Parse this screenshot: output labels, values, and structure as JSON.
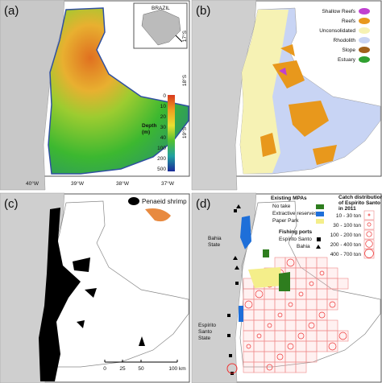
{
  "panels": [
    {
      "label": "(a)",
      "inset_label": "BRAZIL",
      "lat_labels": [
        "17°S",
        "18°S",
        "19°S"
      ],
      "lon_labels": [
        "40°W",
        "39°W",
        "38°W",
        "37°W"
      ],
      "depth_title": [
        "Depth",
        "(m)"
      ],
      "depth_ticks": [
        0,
        10,
        20,
        30,
        40,
        100,
        200,
        500
      ]
    },
    {
      "label": "(b)",
      "legend": [
        "Shallow Reefs",
        "Reefs",
        "Unconsolidated",
        "Rhodolith",
        "Slope",
        "Estuary"
      ]
    },
    {
      "label": "(c)",
      "legend": "Penaeid shrimp",
      "scale_labels": [
        "0",
        "25",
        "50",
        "100 km"
      ]
    },
    {
      "label": "(d)",
      "mpa_title": "Existing MPAs",
      "mpa_items": [
        "No take",
        "Extractive reserves",
        "Paper Park"
      ],
      "ports_title": "Fishing ports",
      "ports": [
        "Espírito Santo",
        "Bahia"
      ],
      "catch_title": [
        "Catch distribution",
        "of Espírito Santo",
        "in 2011"
      ],
      "catch_classes": [
        "10 - 30 ton",
        "30 - 100 ton",
        "100 - 200 ton",
        "200 - 400 ton",
        "400 - 700 ton"
      ],
      "state_labels": [
        [
          "Bahia",
          "State"
        ],
        [
          "Espírito",
          "Santo",
          "State"
        ]
      ]
    }
  ]
}
